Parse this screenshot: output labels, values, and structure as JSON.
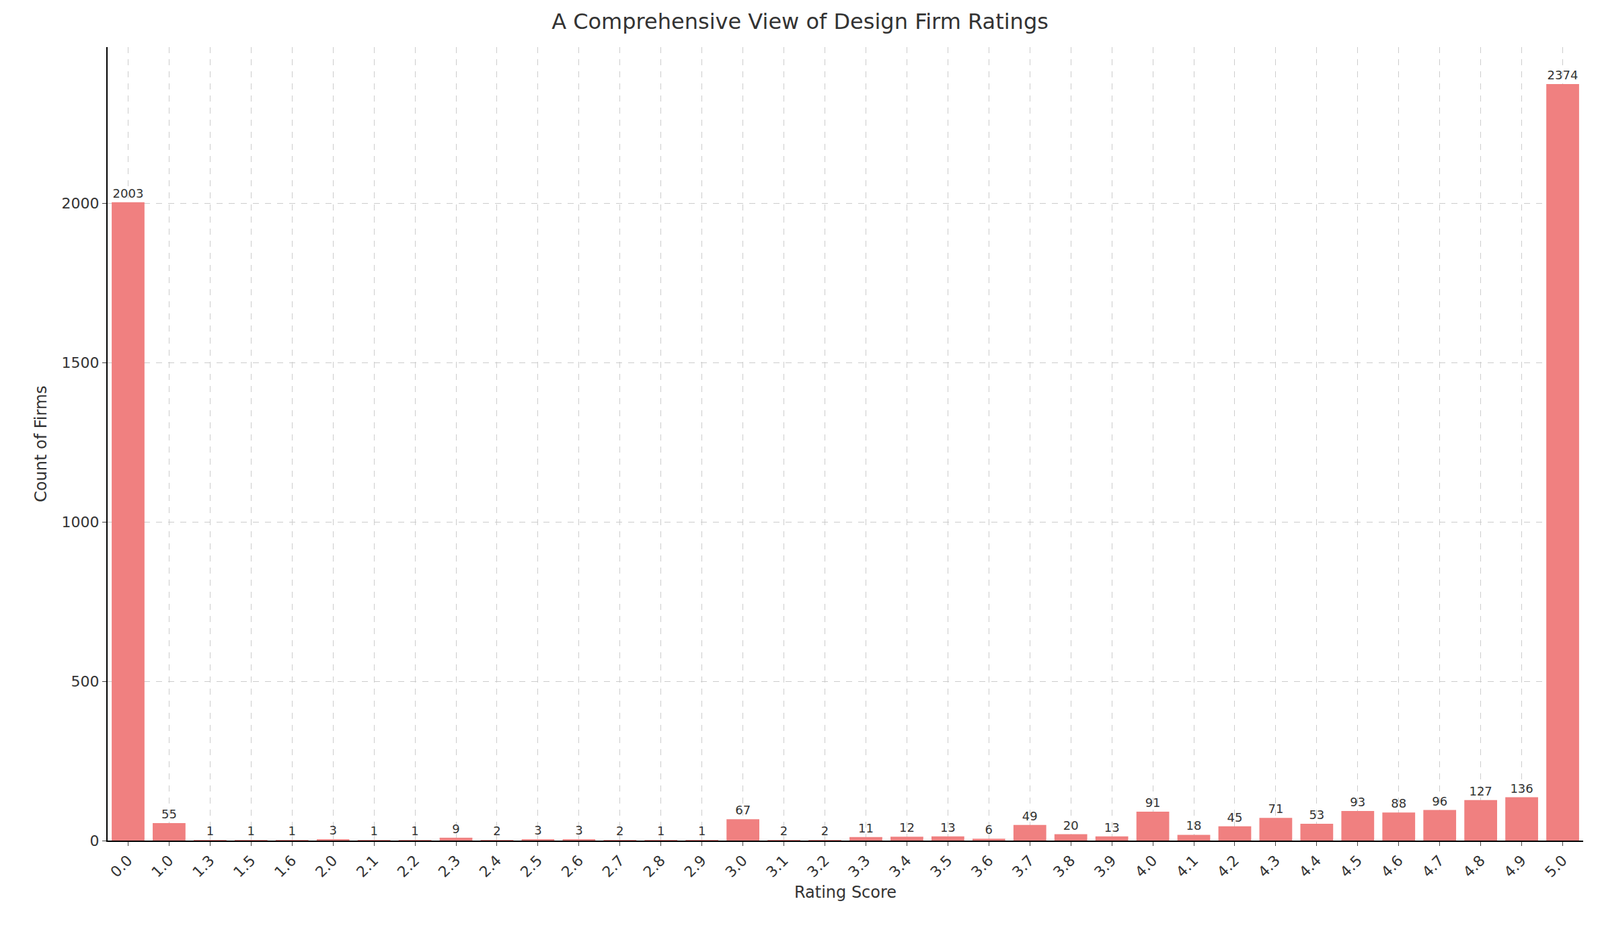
{
  "chart_data": {
    "type": "bar",
    "title": "A Comprehensive View of Design Firm Ratings",
    "x_label": "Rating Score",
    "y_label": "Count of Firms",
    "categories": [
      "0.0",
      "1.0",
      "1.3",
      "1.5",
      "1.6",
      "2.0",
      "2.1",
      "2.2",
      "2.3",
      "2.4",
      "2.5",
      "2.6",
      "2.7",
      "2.8",
      "2.9",
      "3.0",
      "3.1",
      "3.2",
      "3.3",
      "3.4",
      "3.5",
      "3.6",
      "3.7",
      "3.8",
      "3.9",
      "4.0",
      "4.1",
      "4.2",
      "4.3",
      "4.4",
      "4.5",
      "4.6",
      "4.7",
      "4.8",
      "4.9",
      "5.0"
    ],
    "values": [
      2003,
      55,
      1,
      1,
      1,
      3,
      1,
      1,
      9,
      2,
      3,
      3,
      2,
      1,
      1,
      67,
      2,
      2,
      11,
      12,
      13,
      6,
      49,
      20,
      13,
      91,
      18,
      45,
      71,
      53,
      93,
      88,
      96,
      127,
      136,
      2374
    ],
    "color": "#f08080",
    "ylim": [
      0,
      2490
    ],
    "yticks": [
      0,
      500,
      1000,
      1500,
      2000
    ],
    "grid": true,
    "data_labels": true
  }
}
